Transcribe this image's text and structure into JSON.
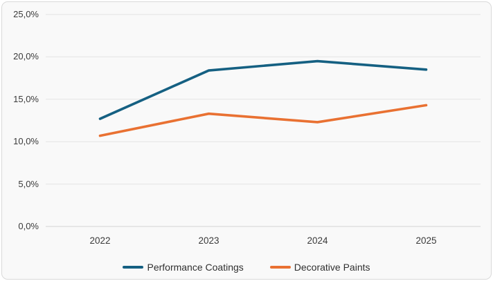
{
  "chart": {
    "background_color": "#f9f9f9",
    "border_color": "#d9d9d9",
    "gridline_color": "#e4e4e4",
    "axis_line_color": "#d2d2d2",
    "tick_text_color": "#3a3a3a"
  },
  "chart_data": {
    "type": "line",
    "title": "",
    "xlabel": "",
    "ylabel": "",
    "categories": [
      "2022",
      "2023",
      "2024",
      "2025"
    ],
    "series": [
      {
        "name": "Performance Coatings",
        "color": "#156082",
        "values": [
          12.7,
          18.4,
          19.5,
          18.5
        ]
      },
      {
        "name": "Decorative Paints",
        "color": "#E97132",
        "values": [
          10.7,
          13.3,
          12.3,
          14.3
        ]
      }
    ],
    "ylim": [
      0,
      25
    ],
    "ytick_step": 5,
    "ytick_labels": [
      "0,0%",
      "5,0%",
      "10,0%",
      "15,0%",
      "20,0%",
      "25,0%"
    ],
    "value_format": "comma-decimal-percent",
    "grid": true,
    "legend_position": "bottom"
  }
}
